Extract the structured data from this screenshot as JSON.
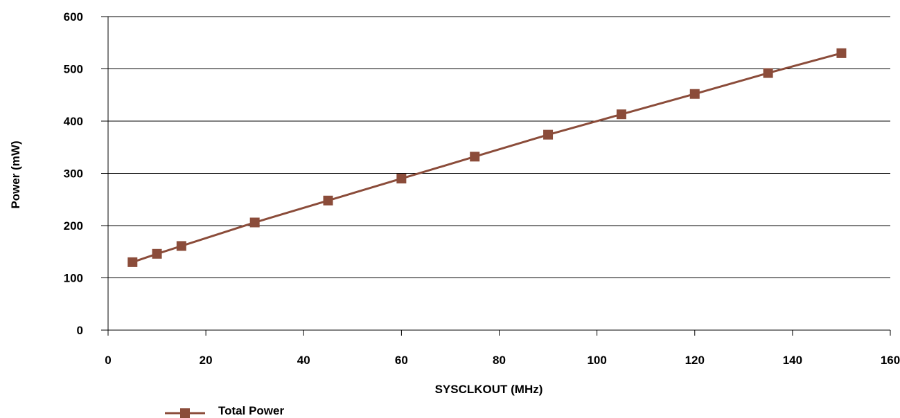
{
  "chart_data": {
    "type": "line",
    "title": "",
    "xlabel": "SYSCLKOUT (MHz)",
    "ylabel": "Power (mW)",
    "xlim": [
      0,
      160
    ],
    "ylim": [
      0,
      600
    ],
    "x_ticks": [
      "0",
      "20",
      "40",
      "60",
      "80",
      "100",
      "120",
      "140",
      "160"
    ],
    "y_ticks": [
      "0",
      "100",
      "200",
      "300",
      "400",
      "500",
      "600"
    ],
    "grid": "horizontal",
    "legend_position": "bottom-left",
    "series": [
      {
        "name": "Total Power",
        "color": "#8B4C3A",
        "marker": "square",
        "x": [
          5,
          10,
          15,
          30,
          45,
          60,
          75,
          90,
          105,
          120,
          135,
          150
        ],
        "y": [
          130,
          146,
          161,
          206,
          248,
          290,
          332,
          374,
          413,
          452,
          492,
          530
        ]
      }
    ]
  }
}
